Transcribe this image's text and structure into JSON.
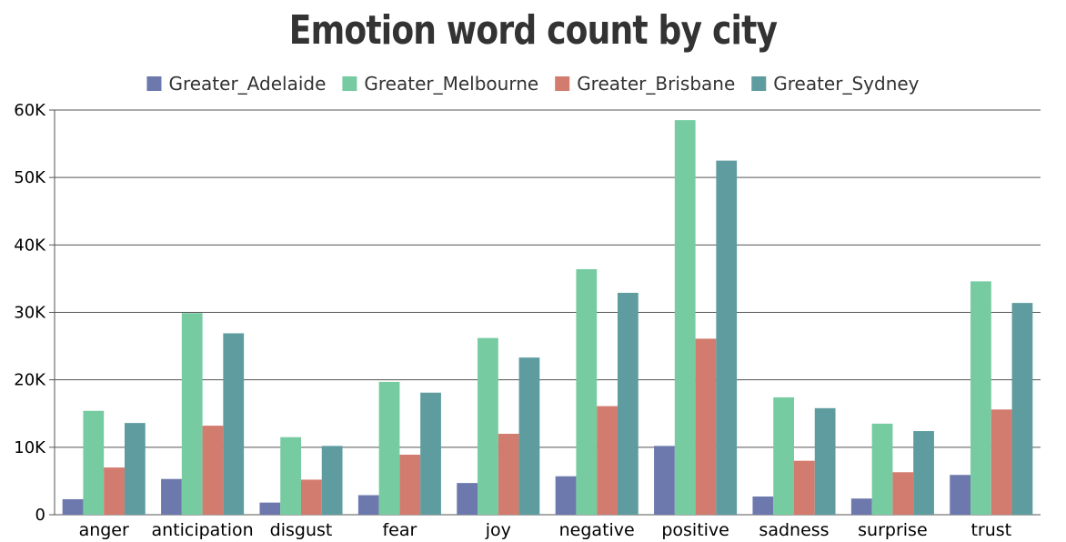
{
  "chart_data": {
    "type": "bar",
    "title": "Emotion word count by city",
    "xlabel": "",
    "ylabel": "",
    "ylim": [
      0,
      60000
    ],
    "y_ticks": [
      0,
      10000,
      20000,
      30000,
      40000,
      50000,
      60000
    ],
    "y_tick_labels": [
      "0",
      "10K",
      "20K",
      "30K",
      "40K",
      "50K",
      "60K"
    ],
    "grid": true,
    "legend_placement": "top-center",
    "categories": [
      "anger",
      "anticipation",
      "disgust",
      "fear",
      "joy",
      "negative",
      "positive",
      "sadness",
      "surprise",
      "trust"
    ],
    "series": [
      {
        "name": "Greater_Adelaide",
        "color": "#6d78ad",
        "values": [
          2300,
          5300,
          1800,
          2900,
          4700,
          5700,
          10200,
          2700,
          2400,
          5900
        ]
      },
      {
        "name": "Greater_Melbourne",
        "color": "#76cba1",
        "values": [
          15400,
          29900,
          11500,
          19700,
          26200,
          36400,
          58500,
          17400,
          13500,
          34600
        ]
      },
      {
        "name": "Greater_Brisbane",
        "color": "#d27c6f",
        "values": [
          7000,
          13200,
          5200,
          8900,
          12000,
          16100,
          26100,
          8000,
          6300,
          15600
        ]
      },
      {
        "name": "Greater_Sydney",
        "color": "#5f9c9f",
        "values": [
          13600,
          26900,
          10200,
          18100,
          23300,
          32900,
          52500,
          15800,
          12400,
          31400
        ]
      }
    ]
  }
}
